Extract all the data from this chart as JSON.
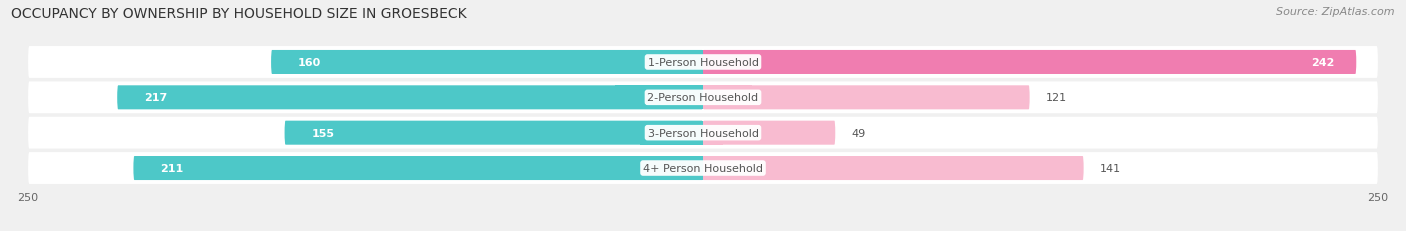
{
  "title": "OCCUPANCY BY OWNERSHIP BY HOUSEHOLD SIZE IN GROESBECK",
  "source": "Source: ZipAtlas.com",
  "categories": [
    "1-Person Household",
    "2-Person Household",
    "3-Person Household",
    "4+ Person Household"
  ],
  "owner_values": [
    160,
    217,
    155,
    211
  ],
  "renter_values": [
    242,
    121,
    49,
    141
  ],
  "owner_color": "#4dc8c8",
  "renter_color": "#f07db0",
  "renter_color_light": "#f8bbd0",
  "xlim": 250,
  "background_color": "#f0f0f0",
  "bar_row_color": "#e0e0e0",
  "title_fontsize": 10,
  "source_fontsize": 8,
  "label_fontsize": 8,
  "value_fontsize": 8,
  "axis_fontsize": 8,
  "legend_fontsize": 8
}
